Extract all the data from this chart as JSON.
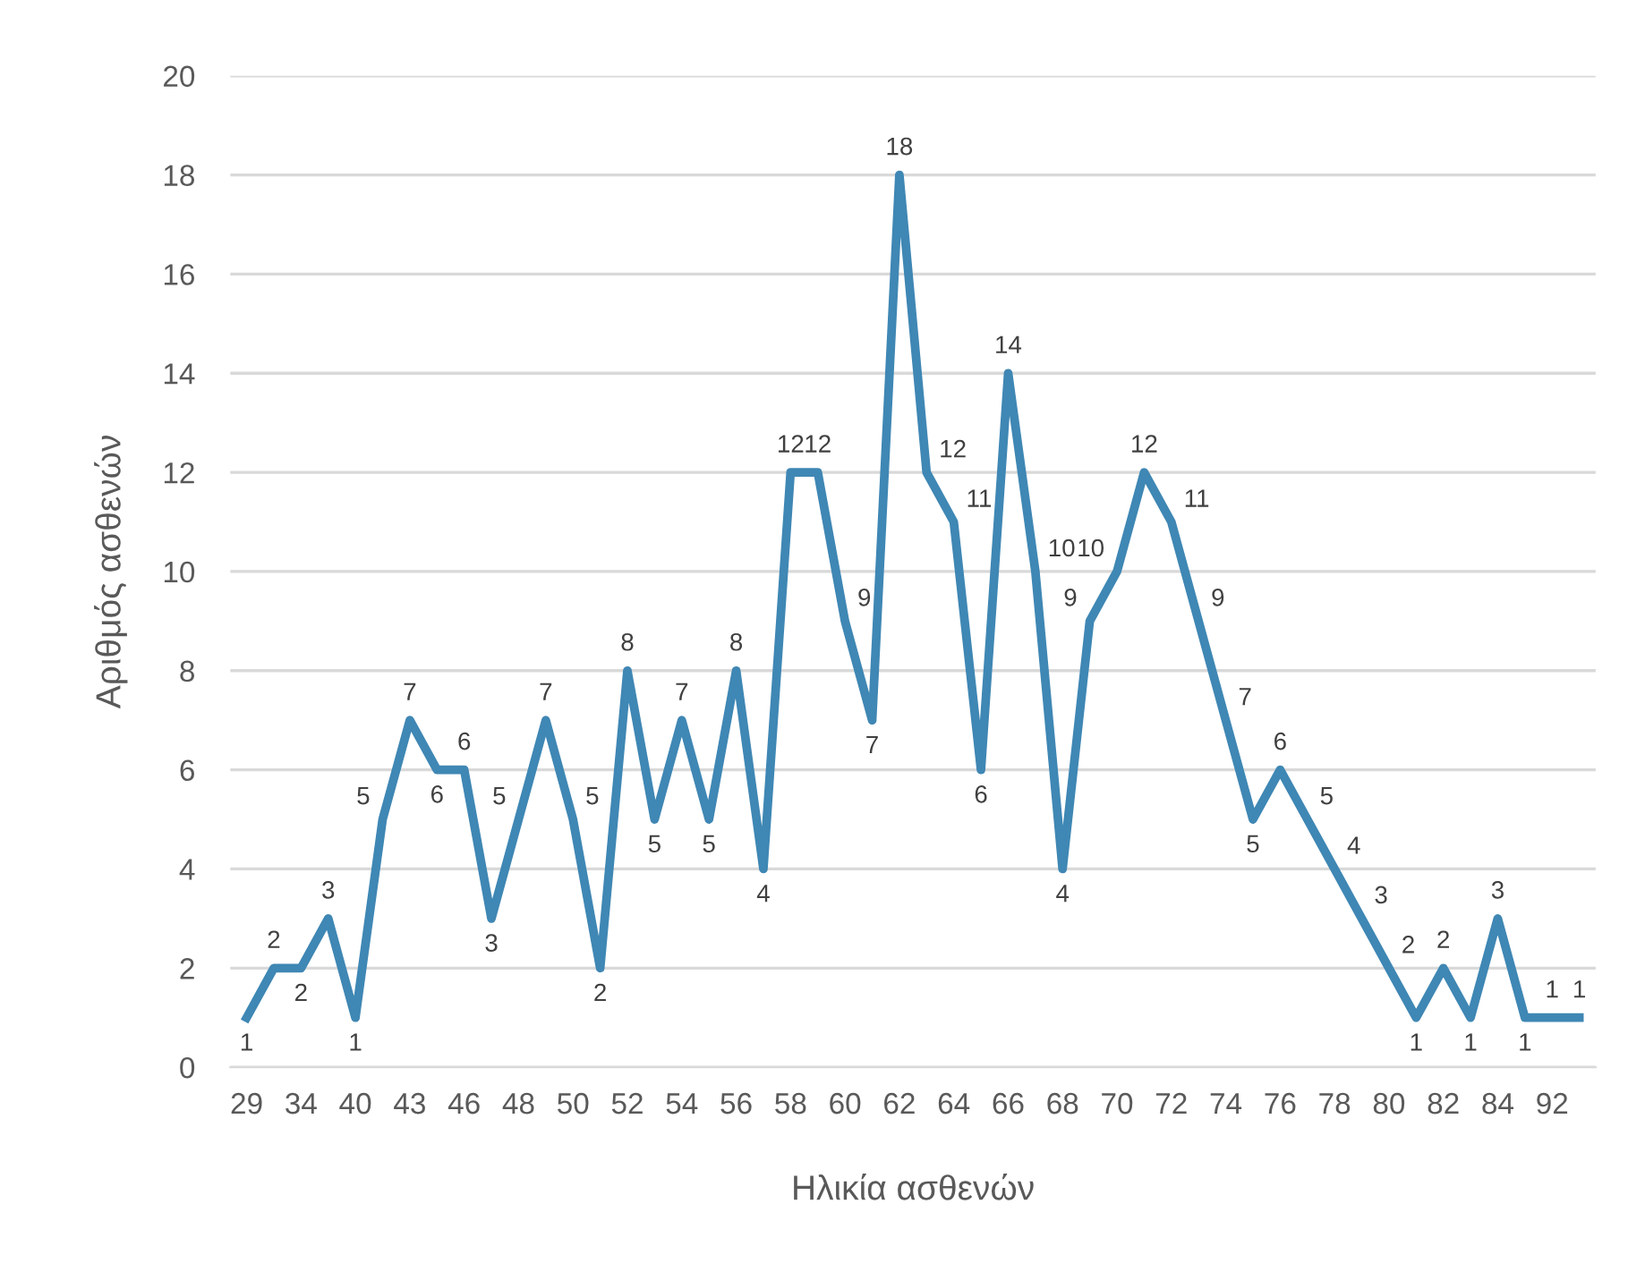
{
  "chart_data": {
    "type": "line",
    "xlabel": "Ηλικία ασθενών",
    "ylabel": "Αριθμός ασθενών",
    "categories": [
      "29",
      null,
      "34",
      null,
      "40",
      null,
      "43",
      null,
      "46",
      null,
      "48",
      null,
      "50",
      null,
      "52",
      null,
      "54",
      null,
      "56",
      null,
      "58",
      null,
      "60",
      null,
      "62",
      null,
      "64",
      null,
      "66",
      null,
      "68",
      null,
      "70",
      null,
      "72",
      null,
      "74",
      null,
      "76",
      null,
      "78",
      null,
      "80",
      null,
      "82",
      null,
      "84",
      null,
      "92",
      null
    ],
    "series": [
      {
        "color": "#3f87b4",
        "values": [
          1,
          2,
          2,
          3,
          1,
          5,
          7,
          6,
          6,
          3,
          5,
          7,
          5,
          2,
          8,
          5,
          7,
          5,
          8,
          4,
          12,
          12,
          9,
          7,
          18,
          12,
          11,
          6,
          14,
          10,
          4,
          9,
          10,
          12,
          11,
          9,
          7,
          5,
          6,
          5,
          4,
          3,
          2,
          1,
          2,
          1,
          3,
          1,
          1,
          1
        ]
      }
    ],
    "ylim": [
      0,
      20
    ],
    "yticks": [
      0,
      2,
      4,
      6,
      8,
      10,
      12,
      14,
      16,
      18,
      20
    ],
    "grid": "y",
    "data_labels": true,
    "marker": "none",
    "line_style": "solid",
    "legend": false
  }
}
